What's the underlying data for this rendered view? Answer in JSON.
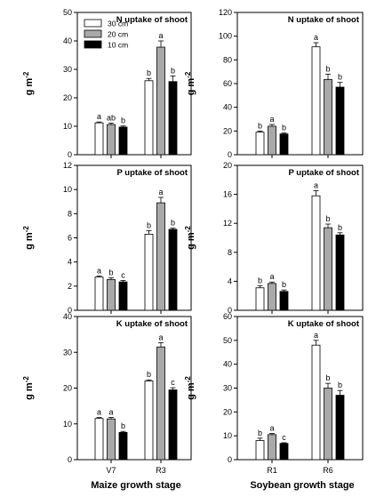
{
  "legend": [
    {
      "label": "30 cm",
      "color": "#ffffff"
    },
    {
      "label": "20 cm",
      "color": "#a9a9a9"
    },
    {
      "label": "10 cm",
      "color": "#000000"
    }
  ],
  "ylabel_main": "g m",
  "ylabel_sup": "-2",
  "col_xlabels": [
    "Maize growth stage",
    "Soybean growth stage"
  ],
  "chart_data": [
    {
      "type": "bar",
      "title": "N uptake of shoot",
      "categories": [
        "V7",
        "R3"
      ],
      "ylim": [
        0,
        50
      ],
      "yticks": [
        0,
        10,
        20,
        30,
        40,
        50
      ],
      "show_xticklabels": false,
      "series": [
        {
          "name": "30 cm",
          "values": [
            11.2,
            26.0
          ],
          "errors": [
            0.3,
            0.8
          ],
          "letters": [
            "a",
            "b"
          ]
        },
        {
          "name": "20 cm",
          "values": [
            10.6,
            37.8
          ],
          "errors": [
            0.5,
            2.2
          ],
          "letters": [
            "ab",
            "a"
          ]
        },
        {
          "name": "10 cm",
          "values": [
            9.7,
            25.7
          ],
          "errors": [
            0.4,
            2.0
          ],
          "letters": [
            "b",
            "b"
          ]
        }
      ]
    },
    {
      "type": "bar",
      "title": "N uptake of shoot",
      "categories": [
        "R1",
        "R6"
      ],
      "ylim": [
        0,
        120
      ],
      "yticks": [
        0,
        20,
        40,
        60,
        80,
        100,
        120
      ],
      "show_xticklabels": false,
      "series": [
        {
          "name": "30 cm",
          "values": [
            19.0,
            91.0
          ],
          "errors": [
            1.0,
            3.5
          ],
          "letters": [
            "b",
            "a"
          ]
        },
        {
          "name": "20 cm",
          "values": [
            24.0,
            63.5
          ],
          "errors": [
            1.5,
            4.5
          ],
          "letters": [
            "a",
            "b"
          ]
        },
        {
          "name": "10 cm",
          "values": [
            17.5,
            57.0
          ],
          "errors": [
            0.8,
            4.0
          ],
          "letters": [
            "b",
            "b"
          ]
        }
      ]
    },
    {
      "type": "bar",
      "title": "P uptake of shoot",
      "categories": [
        "V7",
        "R3"
      ],
      "ylim": [
        0,
        12
      ],
      "yticks": [
        0,
        2,
        4,
        6,
        8,
        10,
        12
      ],
      "show_xticklabels": false,
      "series": [
        {
          "name": "30 cm",
          "values": [
            2.75,
            6.3
          ],
          "errors": [
            0.1,
            0.3
          ],
          "letters": [
            "a",
            "b"
          ]
        },
        {
          "name": "20 cm",
          "values": [
            2.55,
            8.9
          ],
          "errors": [
            0.15,
            0.45
          ],
          "letters": [
            "b",
            "a"
          ]
        },
        {
          "name": "10 cm",
          "values": [
            2.35,
            6.7
          ],
          "errors": [
            0.12,
            0.1
          ],
          "letters": [
            "c",
            "b"
          ]
        }
      ]
    },
    {
      "type": "bar",
      "title": "P uptake of shoot",
      "categories": [
        "R1",
        "R6"
      ],
      "ylim": [
        0,
        20
      ],
      "yticks": [
        0,
        4,
        8,
        12,
        16,
        20
      ],
      "show_xticklabels": false,
      "series": [
        {
          "name": "30 cm",
          "values": [
            3.1,
            15.8
          ],
          "errors": [
            0.3,
            0.7
          ],
          "letters": [
            "b",
            "a"
          ]
        },
        {
          "name": "20 cm",
          "values": [
            3.7,
            11.4
          ],
          "errors": [
            0.2,
            0.5
          ],
          "letters": [
            "a",
            "b"
          ]
        },
        {
          "name": "10 cm",
          "values": [
            2.6,
            10.4
          ],
          "errors": [
            0.2,
            0.3
          ],
          "letters": [
            "b",
            "b"
          ]
        }
      ]
    },
    {
      "type": "bar",
      "title": "K uptake of shoot",
      "categories": [
        "V7",
        "R3"
      ],
      "ylim": [
        0,
        40
      ],
      "yticks": [
        0,
        10,
        20,
        30,
        40
      ],
      "show_xticklabels": true,
      "series": [
        {
          "name": "30 cm",
          "values": [
            11.5,
            22.0
          ],
          "errors": [
            0.3,
            0.3
          ],
          "letters": [
            "a",
            "b"
          ]
        },
        {
          "name": "20 cm",
          "values": [
            11.4,
            31.5
          ],
          "errors": [
            0.4,
            1.2
          ],
          "letters": [
            "a",
            "a"
          ]
        },
        {
          "name": "10 cm",
          "values": [
            7.6,
            19.5
          ],
          "errors": [
            0.3,
            0.6
          ],
          "letters": [
            "b",
            "c"
          ]
        }
      ]
    },
    {
      "type": "bar",
      "title": "K uptake of shoot",
      "categories": [
        "R1",
        "R6"
      ],
      "ylim": [
        0,
        60
      ],
      "yticks": [
        0,
        10,
        20,
        30,
        40,
        50,
        60
      ],
      "show_xticklabels": true,
      "series": [
        {
          "name": "30 cm",
          "values": [
            8.0,
            48.0
          ],
          "errors": [
            1.0,
            2.0
          ],
          "letters": [
            "b",
            "a"
          ]
        },
        {
          "name": "20 cm",
          "values": [
            10.5,
            30.0
          ],
          "errors": [
            0.5,
            2.0
          ],
          "letters": [
            "a",
            "b"
          ]
        },
        {
          "name": "10 cm",
          "values": [
            6.8,
            27.0
          ],
          "errors": [
            0.3,
            2.0
          ],
          "letters": [
            "c",
            "b"
          ]
        }
      ]
    }
  ]
}
